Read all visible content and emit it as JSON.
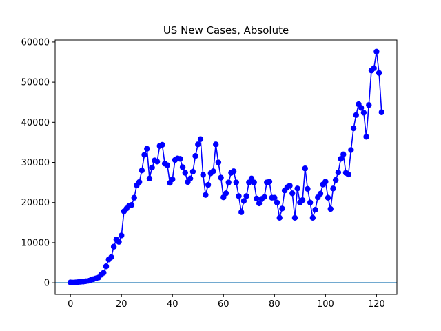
{
  "chart_data": {
    "type": "line",
    "title": "US New Cases, Absolute",
    "xlabel": "",
    "ylabel": "",
    "xlim": [
      -6,
      128
    ],
    "ylim": [
      -2900,
      60500
    ],
    "grid": false,
    "xticks": [
      0,
      20,
      40,
      60,
      80,
      100,
      120
    ],
    "yticks": [
      0,
      10000,
      20000,
      30000,
      40000,
      50000,
      60000
    ],
    "xtick_labels": [
      "0",
      "20",
      "40",
      "60",
      "80",
      "100",
      "120"
    ],
    "ytick_labels": [
      "0",
      "10000",
      "20000",
      "30000",
      "40000",
      "50000",
      "60000"
    ],
    "baseline": {
      "y": 0,
      "color": "#1f77b4"
    },
    "series": [
      {
        "color": "#0000ff",
        "marker": "circle",
        "x": [
          0,
          1,
          2,
          3,
          4,
          5,
          6,
          7,
          8,
          9,
          10,
          11,
          12,
          13,
          14,
          15,
          16,
          17,
          18,
          19,
          20,
          21,
          22,
          23,
          24,
          25,
          26,
          27,
          28,
          29,
          30,
          31,
          32,
          33,
          34,
          35,
          36,
          37,
          38,
          39,
          40,
          41,
          42,
          43,
          44,
          45,
          46,
          47,
          48,
          49,
          50,
          51,
          52,
          53,
          54,
          55,
          56,
          57,
          58,
          59,
          60,
          61,
          62,
          63,
          64,
          65,
          66,
          67,
          68,
          69,
          70,
          71,
          72,
          73,
          74,
          75,
          76,
          77,
          78,
          79,
          80,
          81,
          82,
          83,
          84,
          85,
          86,
          87,
          88,
          89,
          90,
          91,
          92,
          93,
          94,
          95,
          96,
          97,
          98,
          99,
          100,
          101,
          102,
          103,
          104,
          105,
          106,
          107,
          108,
          109,
          110,
          111,
          112,
          113,
          114,
          115,
          116,
          117,
          118,
          119,
          120,
          121,
          122
        ],
        "y": [
          100,
          50,
          100,
          150,
          250,
          300,
          400,
          500,
          700,
          900,
          1100,
          1300,
          2000,
          2500,
          4100,
          5800,
          6400,
          9000,
          10800,
          10200,
          11800,
          17800,
          18500,
          19200,
          19400,
          21200,
          24300,
          25100,
          28000,
          31900,
          33400,
          26000,
          28700,
          30500,
          30200,
          34100,
          34400,
          29700,
          29300,
          24900,
          25800,
          30600,
          31000,
          30900,
          28800,
          27400,
          25100,
          26000,
          27700,
          31600,
          34500,
          35800,
          26900,
          21900,
          24400,
          27300,
          27800,
          34500,
          30000,
          26200,
          21300,
          22300,
          25000,
          27400,
          27800,
          25000,
          21600,
          17600,
          20400,
          21600,
          25000,
          26000,
          25000,
          21000,
          19800,
          20900,
          21400,
          25000,
          25200,
          21200,
          21200,
          20000,
          16200,
          18500,
          23000,
          23800,
          24200,
          22300,
          16200,
          23500,
          20000,
          20600,
          28500,
          23400,
          20000,
          16200,
          18200,
          21300,
          22200,
          24500,
          25200,
          21200,
          18400,
          23500,
          25600,
          27500,
          30900,
          32000,
          27400,
          27000,
          33100,
          38500,
          41800,
          44500,
          43600,
          42400,
          36400,
          44300,
          52900,
          53500,
          57600,
          52300,
          42500
        ]
      }
    ]
  }
}
